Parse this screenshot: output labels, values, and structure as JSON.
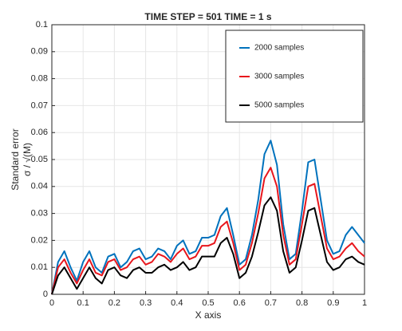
{
  "chart_data": {
    "type": "line",
    "title": "TIME STEP = 501 TIME = 1 s",
    "xlabel": "X axis",
    "ylabel": [
      "Standard error",
      "σ / √(M)"
    ],
    "x": [
      0,
      0.02,
      0.04,
      0.06,
      0.08,
      0.1,
      0.12,
      0.14,
      0.16,
      0.18,
      0.2,
      0.22,
      0.24,
      0.26,
      0.28,
      0.3,
      0.32,
      0.34,
      0.36,
      0.38,
      0.4,
      0.42,
      0.44,
      0.46,
      0.48,
      0.5,
      0.52,
      0.54,
      0.56,
      0.58,
      0.6,
      0.62,
      0.64,
      0.66,
      0.68,
      0.7,
      0.72,
      0.74,
      0.76,
      0.78,
      0.8,
      0.82,
      0.84,
      0.86,
      0.88,
      0.9,
      0.92,
      0.94,
      0.96,
      0.98,
      1
    ],
    "series": [
      {
        "name": "2000 samples",
        "color": "#0072bd",
        "values": [
          0,
          0.012,
          0.016,
          0.01,
          0.005,
          0.012,
          0.016,
          0.01,
          0.008,
          0.014,
          0.015,
          0.01,
          0.012,
          0.016,
          0.017,
          0.013,
          0.014,
          0.017,
          0.016,
          0.013,
          0.018,
          0.02,
          0.015,
          0.016,
          0.021,
          0.021,
          0.022,
          0.029,
          0.032,
          0.022,
          0.011,
          0.013,
          0.022,
          0.035,
          0.052,
          0.057,
          0.048,
          0.026,
          0.013,
          0.015,
          0.031,
          0.049,
          0.05,
          0.035,
          0.02,
          0.015,
          0.016,
          0.022,
          0.025,
          0.022,
          0.019
        ]
      },
      {
        "name": "3000 samples",
        "color": "#e8161c",
        "values": [
          0,
          0.01,
          0.013,
          0.008,
          0.004,
          0.009,
          0.013,
          0.008,
          0.007,
          0.012,
          0.013,
          0.009,
          0.01,
          0.013,
          0.014,
          0.011,
          0.012,
          0.015,
          0.014,
          0.012,
          0.015,
          0.017,
          0.013,
          0.014,
          0.018,
          0.018,
          0.019,
          0.025,
          0.027,
          0.019,
          0.009,
          0.011,
          0.019,
          0.03,
          0.043,
          0.047,
          0.04,
          0.022,
          0.011,
          0.013,
          0.026,
          0.04,
          0.041,
          0.029,
          0.017,
          0.013,
          0.014,
          0.017,
          0.019,
          0.016,
          0.014
        ]
      },
      {
        "name": "5000 samples",
        "color": "#000000",
        "values": [
          0,
          0.007,
          0.01,
          0.006,
          0.002,
          0.006,
          0.01,
          0.006,
          0.004,
          0.009,
          0.01,
          0.007,
          0.006,
          0.009,
          0.01,
          0.008,
          0.008,
          0.01,
          0.011,
          0.009,
          0.01,
          0.012,
          0.009,
          0.01,
          0.014,
          0.014,
          0.014,
          0.019,
          0.021,
          0.015,
          0.006,
          0.008,
          0.014,
          0.023,
          0.033,
          0.036,
          0.031,
          0.016,
          0.008,
          0.01,
          0.02,
          0.031,
          0.032,
          0.022,
          0.012,
          0.009,
          0.01,
          0.013,
          0.014,
          0.012,
          0.011
        ]
      }
    ],
    "xlim": [
      0,
      1
    ],
    "xticks": [
      0,
      0.1,
      0.2,
      0.3,
      0.4,
      0.5,
      0.6,
      0.7,
      0.8,
      0.9,
      1
    ],
    "ylim": [
      0,
      0.1
    ],
    "yticks": [
      0,
      0.01,
      0.02,
      0.03,
      0.04,
      0.05,
      0.06,
      0.07,
      0.08,
      0.09,
      0.1
    ],
    "grid": true,
    "legend": "upper right"
  }
}
